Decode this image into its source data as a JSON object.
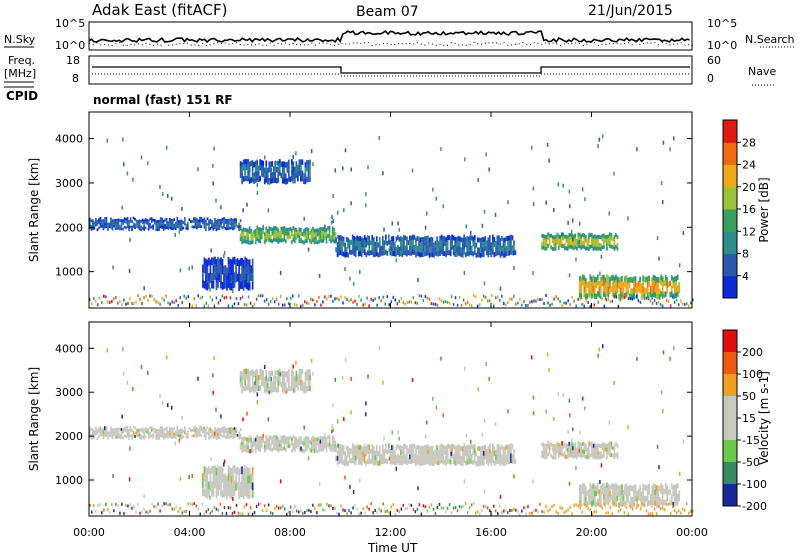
{
  "header": {
    "station": "Adak East (fitACF)",
    "beam": "Beam 07",
    "date": "21/Jun/2015"
  },
  "noise_panel": {
    "left_label": "N.Sky",
    "right_label": "N.Search",
    "left_ticks": [
      "10^5",
      "10^0"
    ],
    "right_ticks": [
      "10^5",
      "10^0"
    ]
  },
  "freq_panel": {
    "left_label_line1": "Freq.",
    "left_label_line2": "[MHz]",
    "right_label": "Nave",
    "left_ticks": [
      "18",
      "8"
    ],
    "right_ticks": [
      "60",
      "0"
    ]
  },
  "cpid": {
    "label": "CPID",
    "text": "normal (fast) 151 RF"
  },
  "x_axis": {
    "label": "Time UT",
    "ticks": [
      "00:00",
      "04:00",
      "08:00",
      "12:00",
      "16:00",
      "20:00",
      "00:00"
    ]
  },
  "chart_data": [
    {
      "type": "heatmap",
      "name": "power",
      "ylabel": "Slant Range [km]",
      "yticks": [
        1000,
        2000,
        3000,
        4000
      ],
      "ylim": [
        180,
        4600
      ],
      "xlim_hours": [
        0,
        24
      ],
      "colorbar": {
        "label": "Power [dB]",
        "ticks": [
          "4",
          "8",
          "12",
          "16",
          "20",
          "24",
          "28"
        ],
        "range": [
          0,
          32
        ],
        "colors": [
          "#0a2bd6",
          "#2a5ab0",
          "#2f8c8c",
          "#3aa060",
          "#9bc23a",
          "#f0a81a",
          "#f06a10",
          "#e01a10"
        ]
      },
      "echo_bands": [
        {
          "hours": [
            0,
            6
          ],
          "range_km": [
            1950,
            2200
          ],
          "power_db": 8
        },
        {
          "hours": [
            6,
            9.8
          ],
          "range_km": [
            1650,
            2000
          ],
          "power_db": 20
        },
        {
          "hours": [
            9.8,
            17
          ],
          "range_km": [
            1350,
            1800
          ],
          "power_db": 10
        },
        {
          "hours": [
            18,
            21
          ],
          "range_km": [
            1500,
            1850
          ],
          "power_db": 22
        },
        {
          "hours": [
            19.5,
            23.5
          ],
          "range_km": [
            400,
            900
          ],
          "power_db": 26
        },
        {
          "hours": [
            6,
            8.8
          ],
          "range_km": [
            3000,
            3500
          ],
          "power_db": 8
        },
        {
          "hours": [
            4.5,
            6.5
          ],
          "range_km": [
            600,
            1300
          ],
          "power_db": 6
        }
      ]
    },
    {
      "type": "heatmap",
      "name": "velocity",
      "ylabel": "Slant Range [km]",
      "yticks": [
        1000,
        2000,
        3000,
        4000
      ],
      "ylim": [
        180,
        4600
      ],
      "xlim_hours": [
        0,
        24
      ],
      "colorbar": {
        "label": "Velocity [m s-1]",
        "ticks": [
          "200",
          "100",
          "50",
          "15",
          "-15",
          "-50",
          "-100",
          "-200"
        ],
        "range": [
          -250,
          250
        ],
        "colors": [
          "#e01010",
          "#f05a10",
          "#f0a020",
          "#c8c8c0",
          "#c8c8c0",
          "#6cc84a",
          "#3a8a60",
          "#1a2a9a"
        ]
      },
      "dominant_color": "#c8c8c0"
    }
  ]
}
